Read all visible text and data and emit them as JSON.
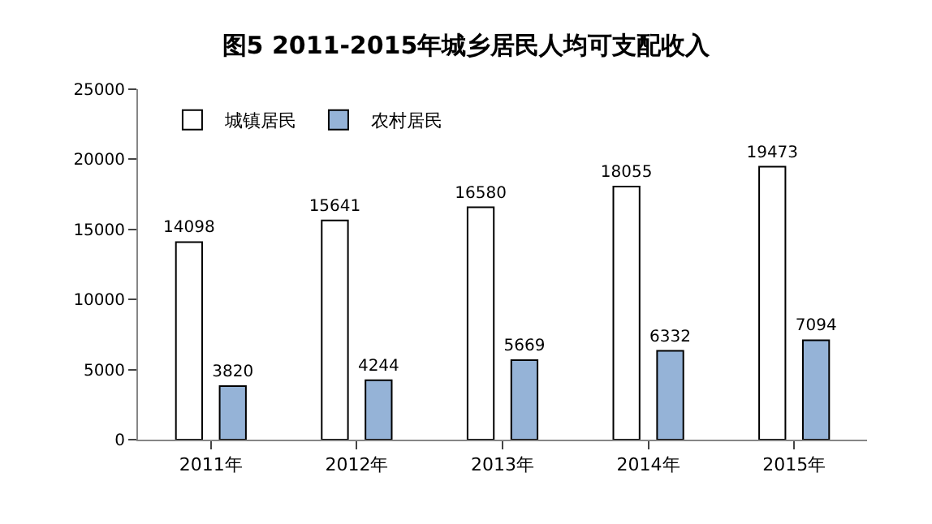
{
  "chart_data": {
    "type": "bar",
    "title": "图5 2011-2015年城乡居民人均可支配收入",
    "categories": [
      "2011年",
      "2012年",
      "2013年",
      "2014年",
      "2015年"
    ],
    "series": [
      {
        "name": "城镇居民",
        "color": "#ffffff",
        "values": [
          14098,
          15641,
          16580,
          18055,
          19473
        ]
      },
      {
        "name": "农村居民",
        "color": "#95b3d7",
        "values": [
          3820,
          4244,
          5669,
          6332,
          7094
        ]
      }
    ],
    "ylim": [
      0,
      25000
    ],
    "yticks": [
      0,
      5000,
      10000,
      15000,
      20000,
      25000
    ],
    "legend": "top left",
    "data_labels": true
  }
}
